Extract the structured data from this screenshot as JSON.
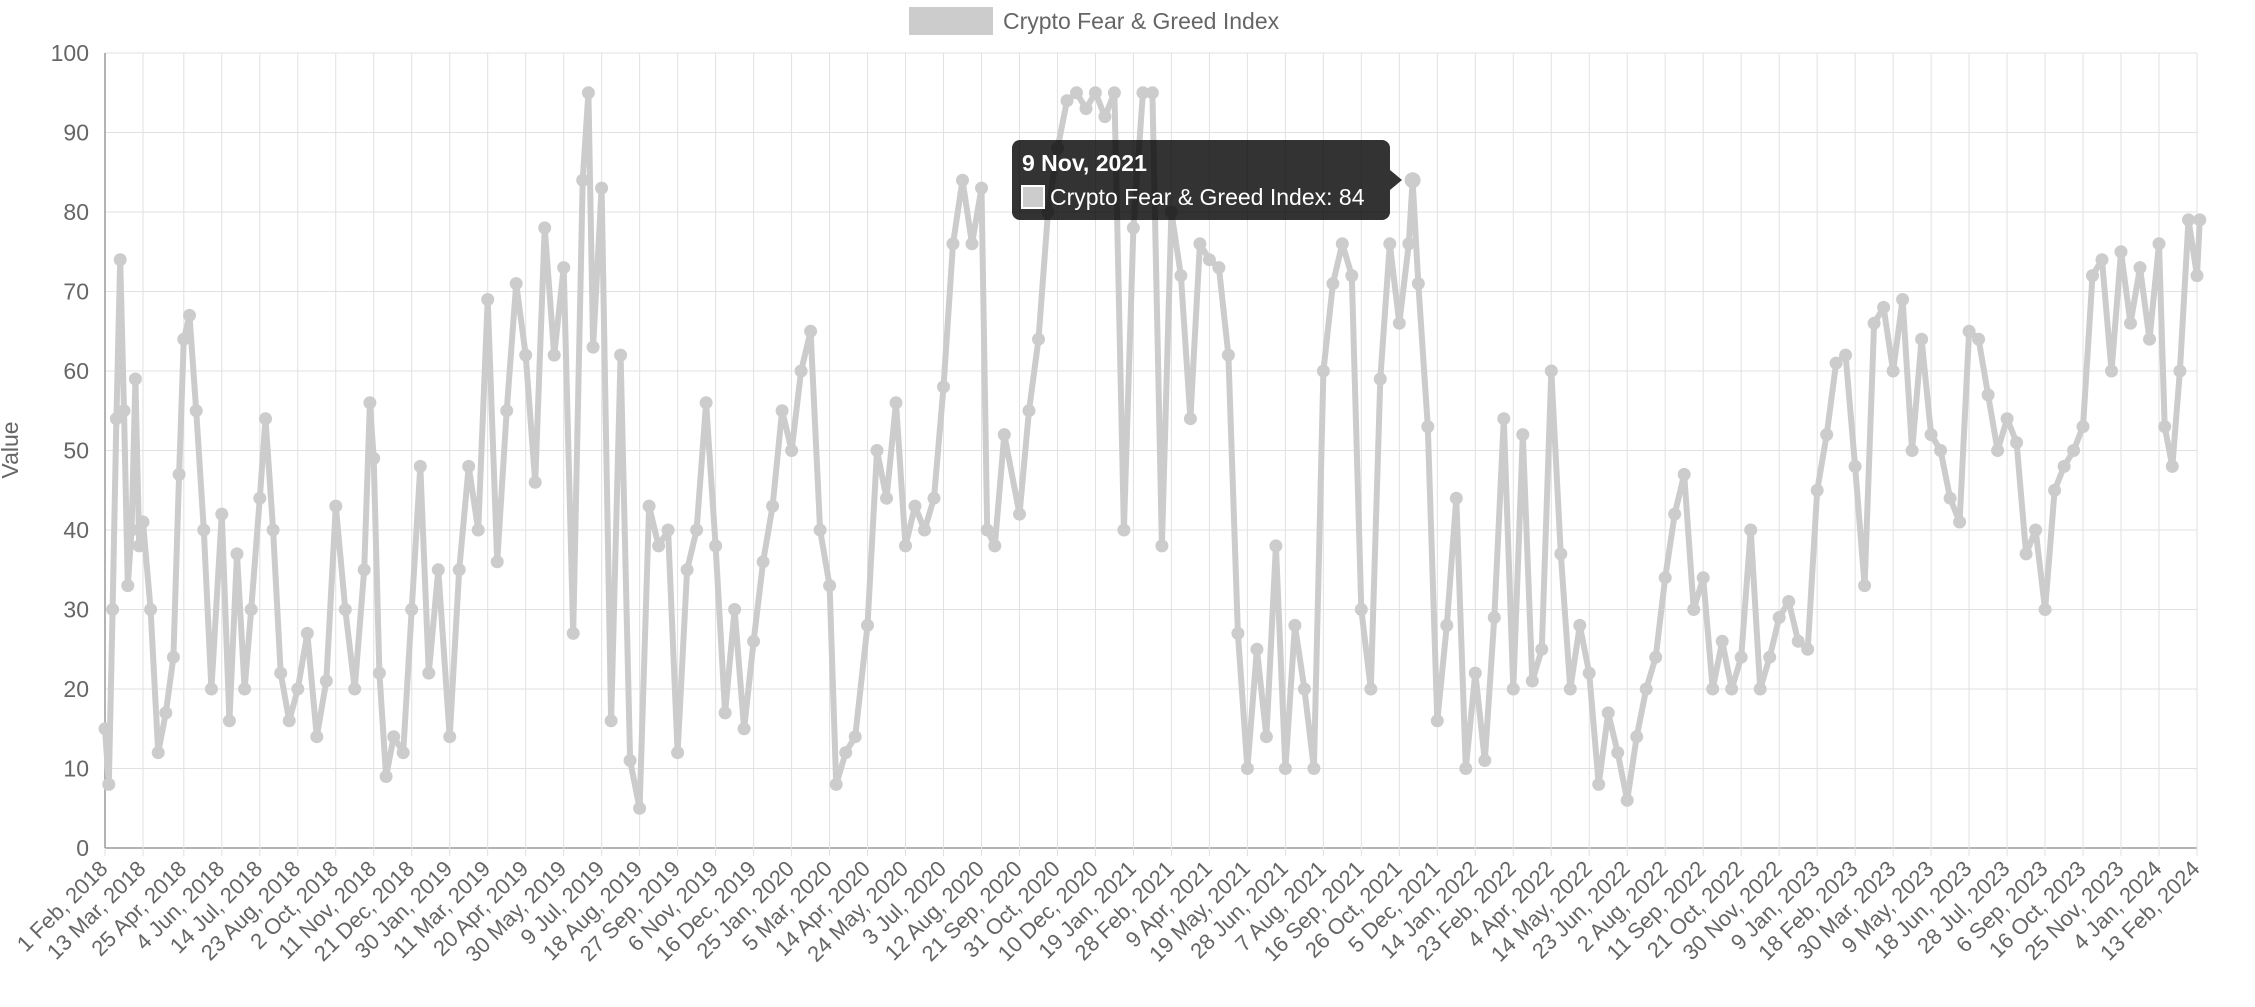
{
  "chart_data": {
    "type": "line",
    "ylabel": "Value",
    "ylim": [
      0,
      100
    ],
    "yticks": [
      0,
      10,
      20,
      30,
      40,
      50,
      60,
      70,
      80,
      90,
      100
    ],
    "grid": true,
    "legend_position": "top-center",
    "x_range": [
      "1 Feb, 2018",
      "13 Feb, 2024"
    ],
    "x_tick_labels": [
      "1 Feb, 2018",
      "13 Mar, 2018",
      "25 Apr, 2018",
      "4 Jun, 2018",
      "14 Jul, 2018",
      "23 Aug, 2018",
      "2 Oct, 2018",
      "11 Nov, 2018",
      "21 Dec, 2018",
      "30 Jan, 2019",
      "11 Mar, 2019",
      "20 Apr, 2019",
      "30 May, 2019",
      "9 Jul, 2019",
      "18 Aug, 2019",
      "27 Sep, 2019",
      "6 Nov, 2019",
      "16 Dec, 2019",
      "25 Jan, 2020",
      "5 Mar, 2020",
      "14 Apr, 2020",
      "24 May, 2020",
      "3 Jul, 2020",
      "12 Aug, 2020",
      "21 Sep, 2020",
      "31 Oct, 2020",
      "10 Dec, 2020",
      "19 Jan, 2021",
      "28 Feb, 2021",
      "9 Apr, 2021",
      "19 May, 2021",
      "28 Jun, 2021",
      "7 Aug, 2021",
      "16 Sep, 2021",
      "26 Oct, 2021",
      "5 Dec, 2021",
      "14 Jan, 2022",
      "23 Feb, 2022",
      "4 Apr, 2022",
      "14 May, 2022",
      "23 Jun, 2022",
      "2 Aug, 2022",
      "11 Sep, 2022",
      "21 Oct, 2022",
      "30 Nov, 2022",
      "9 Jan, 2023",
      "18 Feb, 2023",
      "30 Mar, 2023",
      "9 May, 2023",
      "18 Jun, 2023",
      "28 Jul, 2023",
      "6 Sep, 2023",
      "16 Oct, 2023",
      "25 Nov, 2023",
      "4 Jan, 2024",
      "13 Feb, 2024"
    ],
    "series": [
      {
        "name": "Crypto Fear & Greed Index",
        "color": "#cccccc",
        "points": [
          [
            "1 Feb, 2018",
            15
          ],
          [
            "5 Feb, 2018",
            8
          ],
          [
            "9 Feb, 2018",
            30
          ],
          [
            "13 Feb, 2018",
            54
          ],
          [
            "17 Feb, 2018",
            74
          ],
          [
            "21 Feb, 2018",
            55
          ],
          [
            "25 Feb, 2018",
            33
          ],
          [
            "1 Mar, 2018",
            40
          ],
          [
            "5 Mar, 2018",
            59
          ],
          [
            "9 Mar, 2018",
            38
          ],
          [
            "13 Mar, 2018",
            41
          ],
          [
            "21 Mar, 2018",
            30
          ],
          [
            "29 Mar, 2018",
            12
          ],
          [
            "6 Apr, 2018",
            17
          ],
          [
            "14 Apr, 2018",
            24
          ],
          [
            "20 Apr, 2018",
            47
          ],
          [
            "25 Apr, 2018",
            64
          ],
          [
            "1 May, 2018",
            67
          ],
          [
            "8 May, 2018",
            55
          ],
          [
            "16 May, 2018",
            40
          ],
          [
            "24 May, 2018",
            20
          ],
          [
            "4 Jun, 2018",
            42
          ],
          [
            "12 Jun, 2018",
            16
          ],
          [
            "20 Jun, 2018",
            37
          ],
          [
            "28 Jun, 2018",
            20
          ],
          [
            "5 Jul, 2018",
            30
          ],
          [
            "14 Jul, 2018",
            44
          ],
          [
            "20 Jul, 2018",
            54
          ],
          [
            "28 Jul, 2018",
            40
          ],
          [
            "5 Aug, 2018",
            22
          ],
          [
            "14 Aug, 2018",
            16
          ],
          [
            "23 Aug, 2018",
            20
          ],
          [
            "2 Sep, 2018",
            27
          ],
          [
            "12 Sep, 2018",
            14
          ],
          [
            "22 Sep, 2018",
            21
          ],
          [
            "2 Oct, 2018",
            43
          ],
          [
            "12 Oct, 2018",
            30
          ],
          [
            "22 Oct, 2018",
            20
          ],
          [
            "1 Nov, 2018",
            35
          ],
          [
            "7 Nov, 2018",
            56
          ],
          [
            "11 Nov, 2018",
            49
          ],
          [
            "17 Nov, 2018",
            22
          ],
          [
            "24 Nov, 2018",
            9
          ],
          [
            "2 Dec, 2018",
            14
          ],
          [
            "12 Dec, 2018",
            12
          ],
          [
            "21 Dec, 2018",
            30
          ],
          [
            "30 Dec, 2018",
            48
          ],
          [
            "8 Jan, 2019",
            22
          ],
          [
            "18 Jan, 2019",
            35
          ],
          [
            "30 Jan, 2019",
            14
          ],
          [
            "9 Feb, 2019",
            35
          ],
          [
            "19 Feb, 2019",
            48
          ],
          [
            "1 Mar, 2019",
            40
          ],
          [
            "11 Mar, 2019",
            69
          ],
          [
            "21 Mar, 2019",
            36
          ],
          [
            "31 Mar, 2019",
            55
          ],
          [
            "10 Apr, 2019",
            71
          ],
          [
            "20 Apr, 2019",
            62
          ],
          [
            "30 Apr, 2019",
            46
          ],
          [
            "10 May, 2019",
            78
          ],
          [
            "20 May, 2019",
            62
          ],
          [
            "30 May, 2019",
            73
          ],
          [
            "9 Jun, 2019",
            27
          ],
          [
            "19 Jun, 2019",
            84
          ],
          [
            "25 Jun, 2019",
            95
          ],
          [
            "30 Jun, 2019",
            63
          ],
          [
            "9 Jul, 2019",
            83
          ],
          [
            "19 Jul, 2019",
            16
          ],
          [
            "29 Jul, 2019",
            62
          ],
          [
            "8 Aug, 2019",
            11
          ],
          [
            "18 Aug, 2019",
            5
          ],
          [
            "28 Aug, 2019",
            43
          ],
          [
            "7 Sep, 2019",
            38
          ],
          [
            "17 Sep, 2019",
            40
          ],
          [
            "27 Sep, 2019",
            12
          ],
          [
            "7 Oct, 2019",
            35
          ],
          [
            "17 Oct, 2019",
            40
          ],
          [
            "27 Oct, 2019",
            56
          ],
          [
            "6 Nov, 2019",
            38
          ],
          [
            "16 Nov, 2019",
            17
          ],
          [
            "26 Nov, 2019",
            30
          ],
          [
            "6 Dec, 2019",
            15
          ],
          [
            "16 Dec, 2019",
            26
          ],
          [
            "26 Dec, 2019",
            36
          ],
          [
            "5 Jan, 2020",
            43
          ],
          [
            "15 Jan, 2020",
            55
          ],
          [
            "25 Jan, 2020",
            50
          ],
          [
            "4 Feb, 2020",
            60
          ],
          [
            "14 Feb, 2020",
            65
          ],
          [
            "24 Feb, 2020",
            40
          ],
          [
            "5 Mar, 2020",
            33
          ],
          [
            "12 Mar, 2020",
            8
          ],
          [
            "22 Mar, 2020",
            12
          ],
          [
            "1 Apr, 2020",
            14
          ],
          [
            "14 Apr, 2020",
            28
          ],
          [
            "24 Apr, 2020",
            50
          ],
          [
            "4 May, 2020",
            44
          ],
          [
            "14 May, 2020",
            56
          ],
          [
            "24 May, 2020",
            38
          ],
          [
            "3 Jun, 2020",
            43
          ],
          [
            "13 Jun, 2020",
            40
          ],
          [
            "23 Jun, 2020",
            44
          ],
          [
            "3 Jul, 2020",
            58
          ],
          [
            "13 Jul, 2020",
            76
          ],
          [
            "23 Jul, 2020",
            84
          ],
          [
            "2 Aug, 2020",
            76
          ],
          [
            "12 Aug, 2020",
            83
          ],
          [
            "18 Aug, 2020",
            40
          ],
          [
            "26 Aug, 2020",
            38
          ],
          [
            "5 Sep, 2020",
            52
          ],
          [
            "21 Sep, 2020",
            42
          ],
          [
            "1 Oct, 2020",
            55
          ],
          [
            "11 Oct, 2020",
            64
          ],
          [
            "21 Oct, 2020",
            80
          ],
          [
            "31 Oct, 2020",
            88
          ],
          [
            "10 Nov, 2020",
            94
          ],
          [
            "20 Nov, 2020",
            95
          ],
          [
            "30 Nov, 2020",
            93
          ],
          [
            "10 Dec, 2020",
            95
          ],
          [
            "20 Dec, 2020",
            92
          ],
          [
            "30 Dec, 2020",
            95
          ],
          [
            "9 Jan, 2021",
            40
          ],
          [
            "19 Jan, 2021",
            78
          ],
          [
            "29 Jan, 2021",
            95
          ],
          [
            "8 Feb, 2021",
            95
          ],
          [
            "18 Feb, 2021",
            38
          ],
          [
            "28 Feb, 2021",
            80
          ],
          [
            "10 Mar, 2021",
            72
          ],
          [
            "20 Mar, 2021",
            54
          ],
          [
            "30 Mar, 2021",
            76
          ],
          [
            "9 Apr, 2021",
            74
          ],
          [
            "19 Apr, 2021",
            73
          ],
          [
            "29 Apr, 2021",
            62
          ],
          [
            "9 May, 2021",
            27
          ],
          [
            "19 May, 2021",
            10
          ],
          [
            "29 May, 2021",
            25
          ],
          [
            "8 Jun, 2021",
            14
          ],
          [
            "18 Jun, 2021",
            38
          ],
          [
            "28 Jun, 2021",
            10
          ],
          [
            "8 Jul, 2021",
            28
          ],
          [
            "18 Jul, 2021",
            20
          ],
          [
            "28 Jul, 2021",
            10
          ],
          [
            "7 Aug, 2021",
            60
          ],
          [
            "17 Aug, 2021",
            71
          ],
          [
            "27 Aug, 2021",
            76
          ],
          [
            "6 Sep, 2021",
            72
          ],
          [
            "16 Sep, 2021",
            30
          ],
          [
            "26 Sep, 2021",
            20
          ],
          [
            "6 Oct, 2021",
            59
          ],
          [
            "16 Oct, 2021",
            76
          ],
          [
            "26 Oct, 2021",
            66
          ],
          [
            "5 Nov, 2021",
            76
          ],
          [
            "9 Nov, 2021",
            84
          ],
          [
            "15 Nov, 2021",
            71
          ],
          [
            "25 Nov, 2021",
            53
          ],
          [
            "5 Dec, 2021",
            16
          ],
          [
            "15 Dec, 2021",
            28
          ],
          [
            "25 Dec, 2021",
            44
          ],
          [
            "4 Jan, 2022",
            10
          ],
          [
            "14 Jan, 2022",
            22
          ],
          [
            "24 Jan, 2022",
            11
          ],
          [
            "3 Feb, 2022",
            29
          ],
          [
            "13 Feb, 2022",
            54
          ],
          [
            "23 Feb, 2022",
            20
          ],
          [
            "5 Mar, 2022",
            52
          ],
          [
            "15 Mar, 2022",
            21
          ],
          [
            "25 Mar, 2022",
            25
          ],
          [
            "4 Apr, 2022",
            60
          ],
          [
            "14 Apr, 2022",
            37
          ],
          [
            "24 Apr, 2022",
            20
          ],
          [
            "4 May, 2022",
            28
          ],
          [
            "14 May, 2022",
            22
          ],
          [
            "24 May, 2022",
            8
          ],
          [
            "3 Jun, 2022",
            17
          ],
          [
            "13 Jun, 2022",
            12
          ],
          [
            "23 Jun, 2022",
            6
          ],
          [
            "3 Jul, 2022",
            14
          ],
          [
            "13 Jul, 2022",
            20
          ],
          [
            "23 Jul, 2022",
            24
          ],
          [
            "2 Aug, 2022",
            34
          ],
          [
            "12 Aug, 2022",
            42
          ],
          [
            "22 Aug, 2022",
            47
          ],
          [
            "1 Sep, 2022",
            30
          ],
          [
            "11 Sep, 2022",
            34
          ],
          [
            "21 Sep, 2022",
            20
          ],
          [
            "1 Oct, 2022",
            26
          ],
          [
            "11 Oct, 2022",
            20
          ],
          [
            "21 Oct, 2022",
            24
          ],
          [
            "31 Oct, 2022",
            40
          ],
          [
            "10 Nov, 2022",
            20
          ],
          [
            "20 Nov, 2022",
            24
          ],
          [
            "30 Nov, 2022",
            29
          ],
          [
            "10 Dec, 2022",
            31
          ],
          [
            "20 Dec, 2022",
            26
          ],
          [
            "30 Dec, 2022",
            25
          ],
          [
            "9 Jan, 2023",
            45
          ],
          [
            "19 Jan, 2023",
            52
          ],
          [
            "29 Jan, 2023",
            61
          ],
          [
            "8 Feb, 2023",
            62
          ],
          [
            "18 Feb, 2023",
            48
          ],
          [
            "28 Feb, 2023",
            33
          ],
          [
            "10 Mar, 2023",
            66
          ],
          [
            "20 Mar, 2023",
            68
          ],
          [
            "30 Mar, 2023",
            60
          ],
          [
            "9 Apr, 2023",
            69
          ],
          [
            "19 Apr, 2023",
            50
          ],
          [
            "29 Apr, 2023",
            64
          ],
          [
            "9 May, 2023",
            52
          ],
          [
            "19 May, 2023",
            50
          ],
          [
            "29 May, 2023",
            44
          ],
          [
            "8 Jun, 2023",
            41
          ],
          [
            "18 Jun, 2023",
            65
          ],
          [
            "28 Jun, 2023",
            64
          ],
          [
            "8 Jul, 2023",
            57
          ],
          [
            "18 Jul, 2023",
            50
          ],
          [
            "28 Jul, 2023",
            54
          ],
          [
            "7 Aug, 2023",
            51
          ],
          [
            "17 Aug, 2023",
            37
          ],
          [
            "27 Aug, 2023",
            40
          ],
          [
            "6 Sep, 2023",
            30
          ],
          [
            "16 Sep, 2023",
            45
          ],
          [
            "26 Sep, 2023",
            48
          ],
          [
            "6 Oct, 2023",
            50
          ],
          [
            "16 Oct, 2023",
            53
          ],
          [
            "26 Oct, 2023",
            72
          ],
          [
            "5 Nov, 2023",
            74
          ],
          [
            "15 Nov, 2023",
            60
          ],
          [
            "25 Nov, 2023",
            75
          ],
          [
            "5 Dec, 2023",
            66
          ],
          [
            "15 Dec, 2023",
            73
          ],
          [
            "25 Dec, 2023",
            64
          ],
          [
            "4 Jan, 2024",
            76
          ],
          [
            "10 Jan, 2024",
            53
          ],
          [
            "18 Jan, 2024",
            48
          ],
          [
            "26 Jan, 2024",
            60
          ],
          [
            "4 Feb, 2024",
            79
          ],
          [
            "13 Feb, 2024",
            72
          ],
          [
            "16 Feb, 2024",
            79
          ]
        ]
      }
    ],
    "tooltip": {
      "title": "9 Nov, 2021",
      "label": "Crypto Fear & Greed Index: 84",
      "date": "9 Nov, 2021",
      "value": 84
    }
  }
}
